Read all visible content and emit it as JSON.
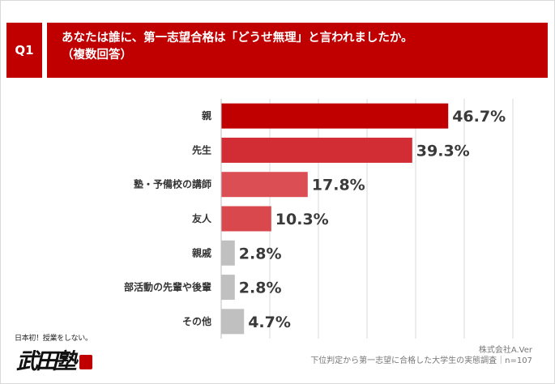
{
  "question": {
    "badge": "Q1",
    "line1": "あなたは誰に、第一志望合格は「どうせ無理」と言われましたか。",
    "line2": "（複数回答）"
  },
  "chart_data": {
    "type": "bar",
    "orientation": "horizontal",
    "categories": [
      "親",
      "先生",
      "塾・予備校の講師",
      "友人",
      "親戚",
      "部活動の先輩や後輩",
      "その他"
    ],
    "values": [
      46.7,
      39.3,
      17.8,
      10.3,
      2.8,
      2.8,
      4.7
    ],
    "value_labels": [
      "46.7%",
      "39.3%",
      "17.8%",
      "10.3%",
      "2.8%",
      "2.8%",
      "4.7%"
    ],
    "bar_colors": [
      "#c00000",
      "#d22c34",
      "#db4f54",
      "#d9484d",
      "#c0c0c0",
      "#c0c0c0",
      "#c0c0c0"
    ],
    "grid": true,
    "xlim": [
      0,
      60
    ]
  },
  "footer": {
    "company": "株式会社A.Ver",
    "survey": "下位判定から第一志望に合格した大学生の実態調査｜n=107"
  },
  "logo": {
    "tagline": "日本初！授業をしない。",
    "name": "武田塾"
  },
  "colors": {
    "accent": "#c00000",
    "grid": "#d9d9d9",
    "muted_bar": "#c0c0c0"
  }
}
